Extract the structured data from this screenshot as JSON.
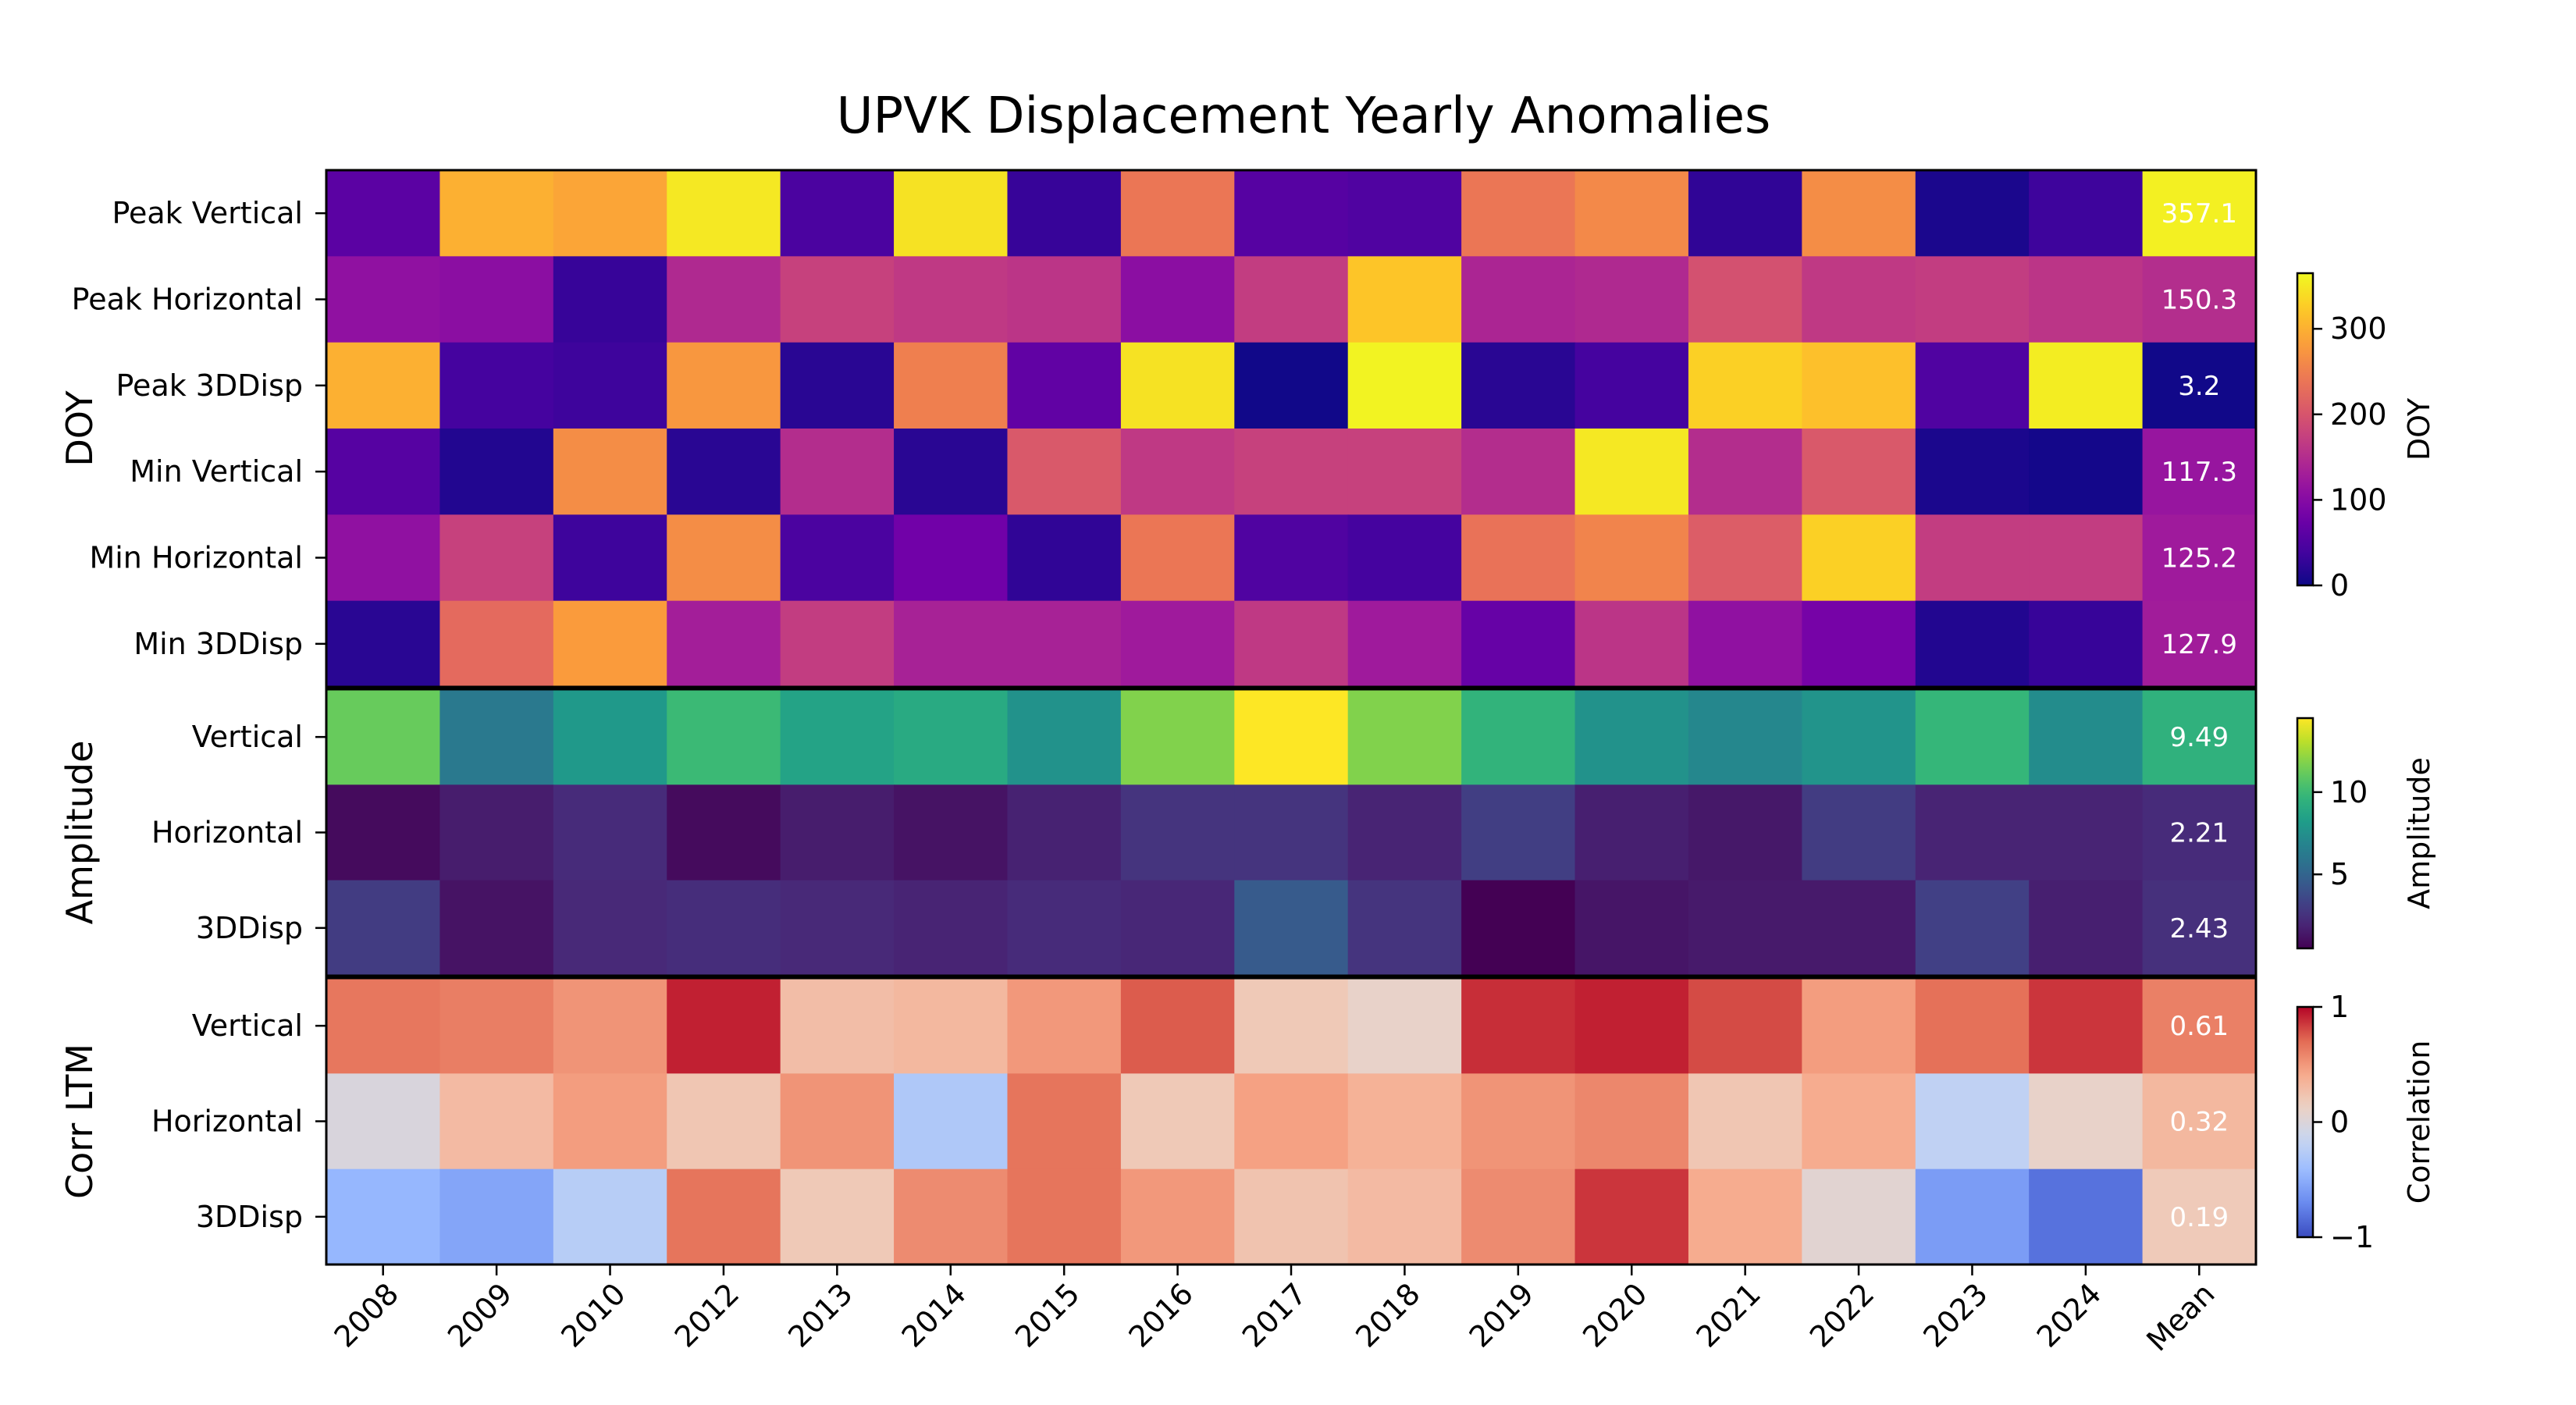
{
  "chart_data": {
    "type": "heatmap",
    "title": "UPVK Displacement Yearly Anomalies",
    "columns": [
      "2008",
      "2009",
      "2010",
      "2012",
      "2013",
      "2014",
      "2015",
      "2016",
      "2017",
      "2018",
      "2019",
      "2020",
      "2021",
      "2022",
      "2023",
      "2024",
      "Mean"
    ],
    "groups": [
      {
        "name": "DOY",
        "colormap": "plasma",
        "colorbar_label": "DOY",
        "vmin": 0,
        "vmax": 365,
        "colorbar_ticks": [
          "0",
          "100",
          "200",
          "300"
        ],
        "colorbar_tick_values": [
          0,
          100,
          200,
          300
        ],
        "rows": [
          {
            "label": "Peak Vertical",
            "values": [
              60,
              300,
              290,
              350,
              45,
              345,
              30,
              240,
              55,
              50,
              240,
              260,
              25,
              265,
              10,
              35
            ],
            "mean": 357.1,
            "mean_label": "357.1"
          },
          {
            "label": "Peak Horizontal",
            "values": [
              110,
              105,
              30,
              145,
              175,
              165,
              160,
              105,
              170,
              320,
              140,
              145,
              195,
              165,
              170,
              160
            ],
            "mean": 150.3,
            "mean_label": "150.3"
          },
          {
            "label": "Peak 3DDisp",
            "values": [
              300,
              40,
              35,
              275,
              20,
              250,
              65,
              345,
              3,
              360,
              20,
              40,
              330,
              315,
              50,
              355
            ],
            "mean": 3.2,
            "mean_label": "3.2"
          },
          {
            "label": "Min Vertical",
            "values": [
              55,
              15,
              265,
              20,
              150,
              20,
              205,
              165,
              175,
              175,
              150,
              350,
              150,
              205,
              10,
              5
            ],
            "mean": 117.3,
            "mean_label": "117.3"
          },
          {
            "label": "Min Horizontal",
            "values": [
              110,
              175,
              35,
              265,
              45,
              80,
              25,
              240,
              50,
              40,
              235,
              255,
              210,
              330,
              170,
              170
            ],
            "mean": 125.2,
            "mean_label": "125.2"
          },
          {
            "label": "Min 3DDisp",
            "values": [
              20,
              225,
              280,
              130,
              170,
              135,
              135,
              125,
              165,
              125,
              70,
              160,
              110,
              85,
              15,
              30
            ],
            "mean": 127.9,
            "mean_label": "127.9"
          }
        ]
      },
      {
        "name": "Amplitude",
        "colormap": "viridis",
        "colorbar_label": "Amplitude",
        "vmin": 0.5,
        "vmax": 14.5,
        "colorbar_ticks": [
          "5",
          "10"
        ],
        "colorbar_tick_values": [
          5,
          10
        ],
        "rows": [
          {
            "label": "Vertical",
            "values": [
              11.2,
              6.2,
              8.0,
              10.0,
              8.6,
              9.0,
              7.6,
              11.8,
              14.5,
              11.8,
              9.6,
              7.6,
              7.0,
              7.7,
              9.8,
              7.3
            ],
            "mean": 9.49,
            "mean_label": "9.49"
          },
          {
            "label": "Horizontal",
            "values": [
              0.9,
              1.6,
              2.2,
              0.9,
              1.6,
              1.2,
              1.8,
              2.6,
              2.6,
              1.9,
              3.1,
              1.7,
              1.4,
              3.0,
              1.9,
              1.9
            ],
            "mean": 2.21,
            "mean_label": "2.21"
          },
          {
            "label": "3DDisp",
            "values": [
              3.0,
              1.2,
              2.1,
              2.3,
              2.1,
              1.9,
              2.2,
              2.0,
              4.5,
              2.6,
              0.5,
              1.3,
              1.5,
              1.5,
              3.2,
              1.7
            ],
            "mean": 2.43,
            "mean_label": "2.43"
          }
        ]
      },
      {
        "name": "Corr LTM",
        "colormap": "coolwarm",
        "colorbar_label": "Correlation",
        "vmin": -1,
        "vmax": 1,
        "colorbar_ticks": [
          "−1",
          "0",
          "1"
        ],
        "colorbar_tick_values": [
          -1,
          0,
          1
        ],
        "rows": [
          {
            "label": "Vertical",
            "values": [
              0.65,
              0.62,
              0.52,
              0.92,
              0.28,
              0.32,
              0.5,
              0.75,
              0.2,
              0.1,
              0.88,
              0.92,
              0.8,
              0.48,
              0.68,
              0.86
            ],
            "mean": 0.61,
            "mean_label": "0.61"
          },
          {
            "label": "Horizontal",
            "values": [
              -0.02,
              0.3,
              0.48,
              0.22,
              0.52,
              -0.3,
              0.66,
              0.2,
              0.46,
              0.36,
              0.52,
              0.58,
              0.22,
              0.4,
              -0.2,
              0.1
            ],
            "mean": 0.32,
            "mean_label": "0.32"
          },
          {
            "label": "3DDisp",
            "values": [
              -0.45,
              -0.55,
              -0.25,
              0.66,
              0.2,
              0.56,
              0.66,
              0.5,
              0.24,
              0.3,
              0.56,
              0.86,
              0.4,
              0.05,
              -0.6,
              -0.82
            ],
            "mean": 0.19,
            "mean_label": "0.19"
          }
        ]
      }
    ]
  }
}
